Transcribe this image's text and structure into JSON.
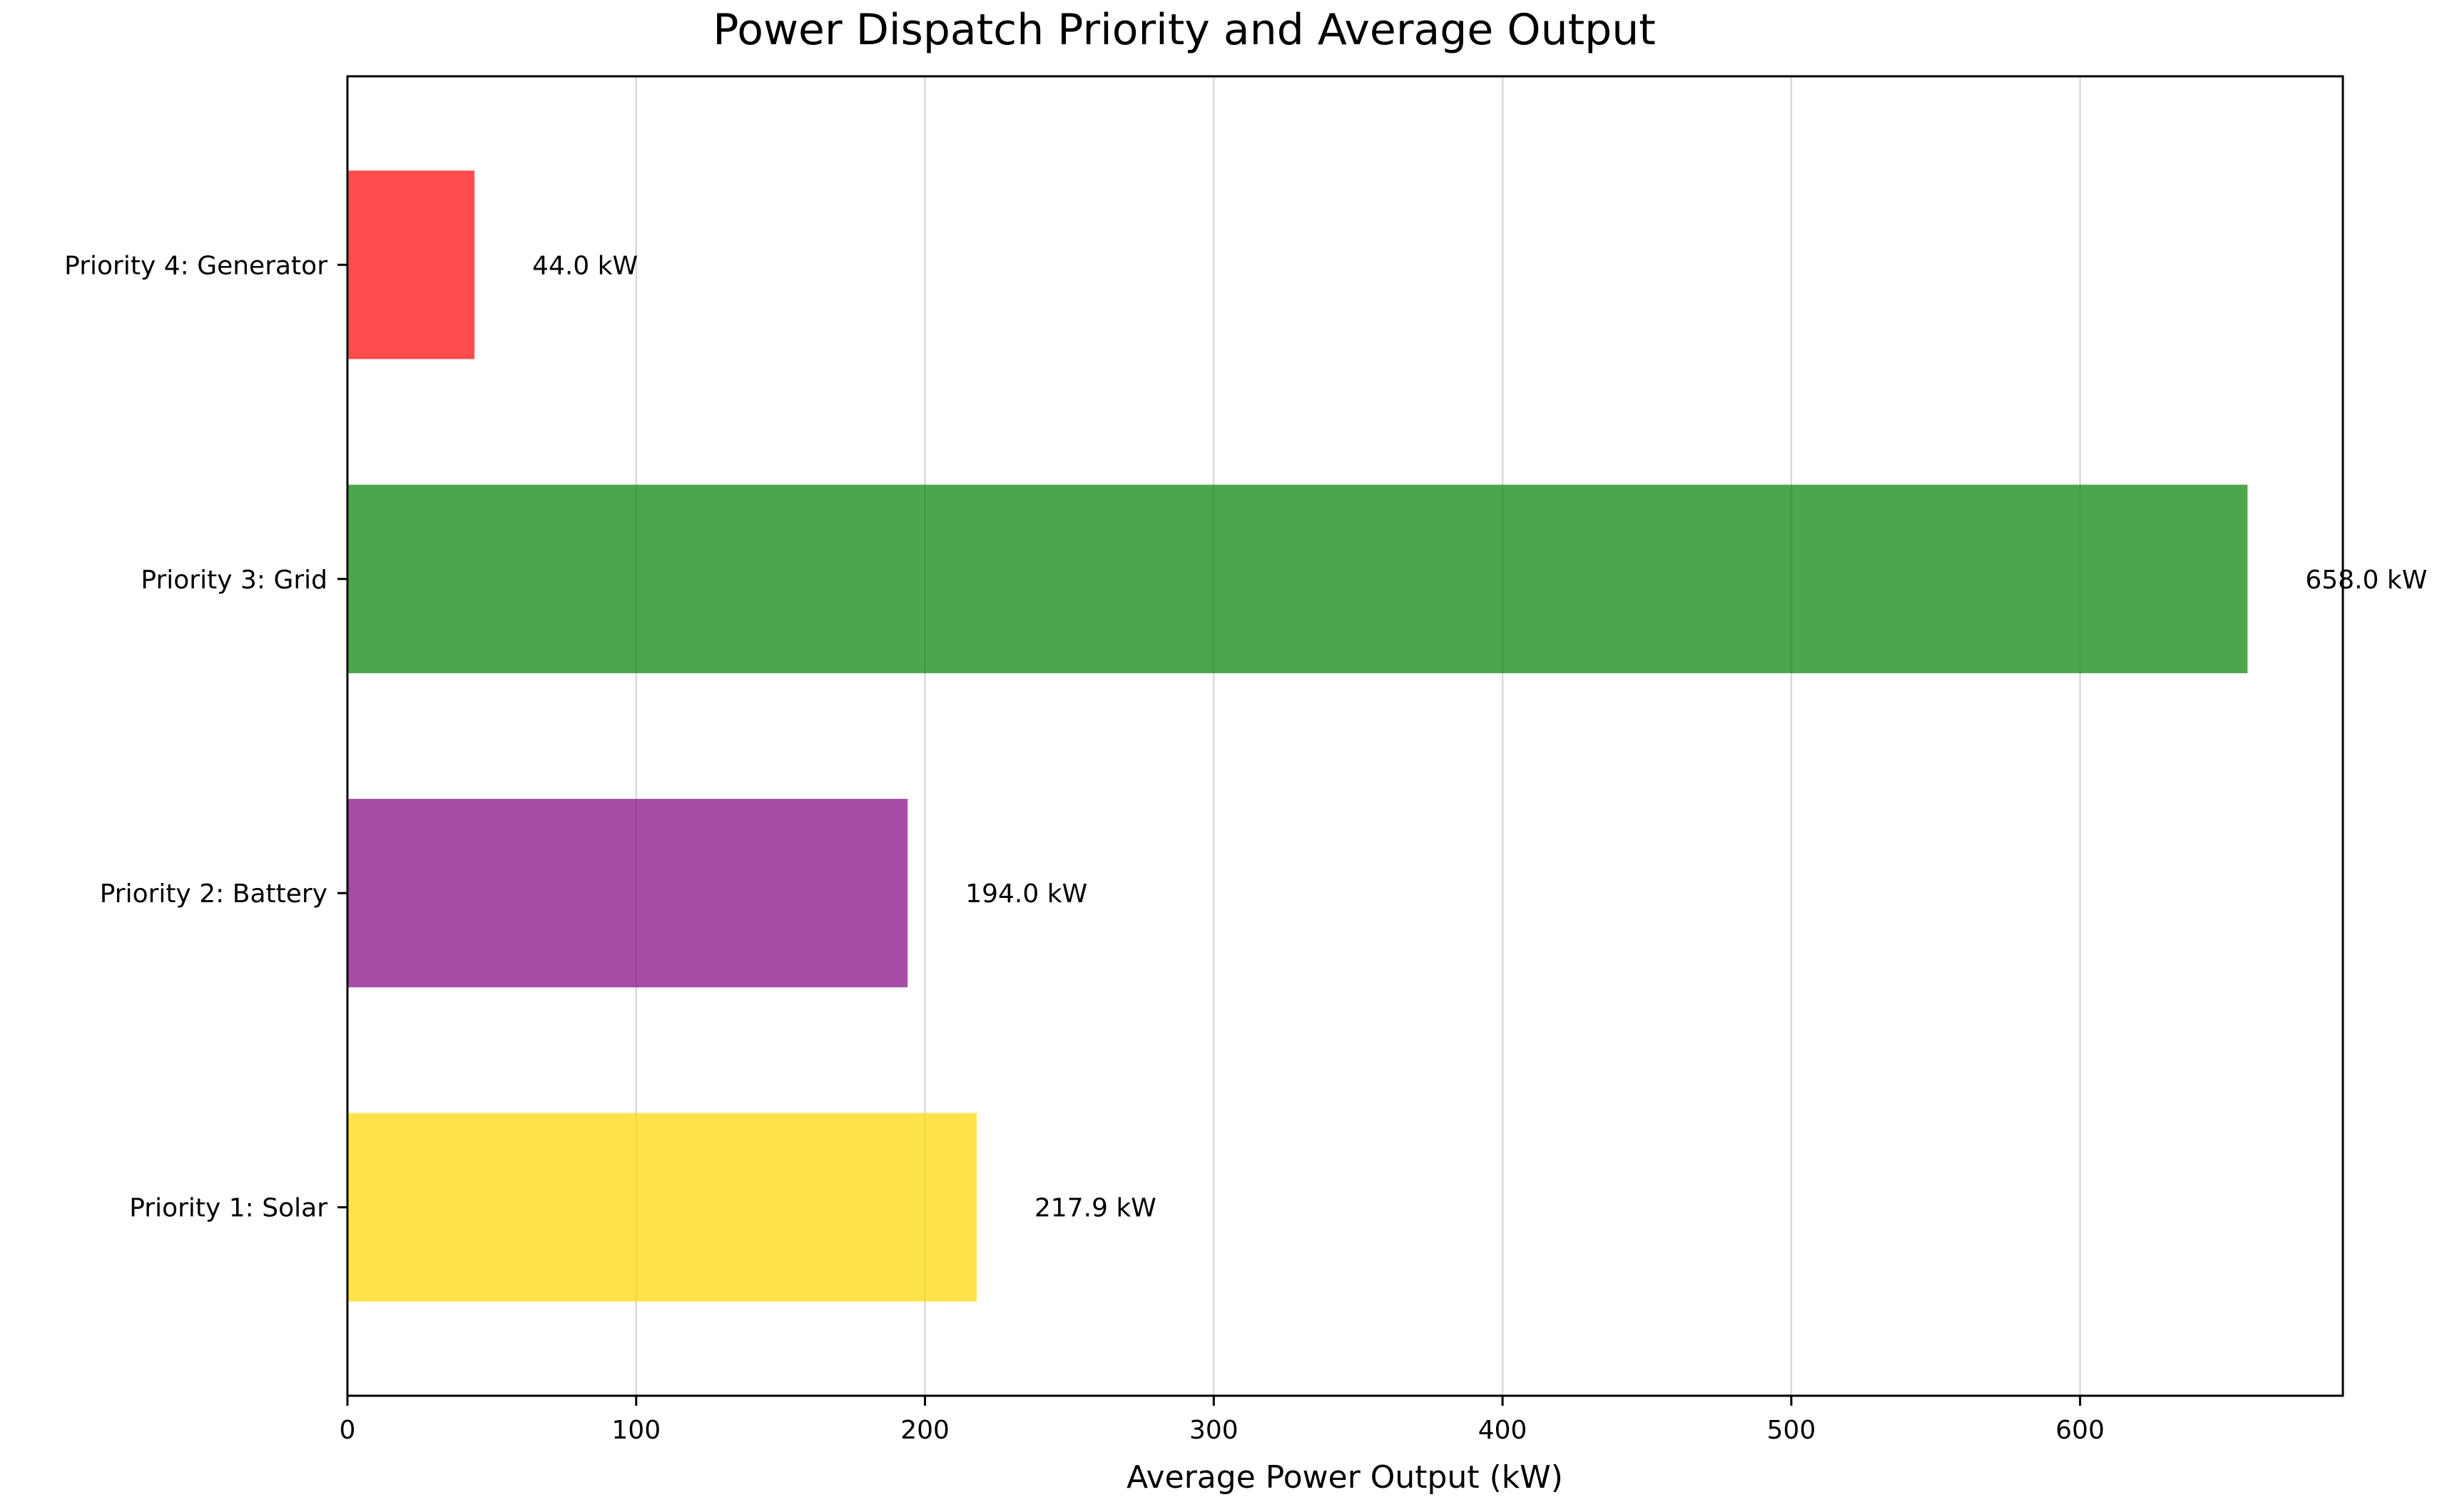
{
  "chart_data": {
    "type": "bar",
    "orientation": "horizontal",
    "title": "Power Dispatch Priority and Average Output",
    "xlabel": "Average Power Output (kW)",
    "ylabel": "",
    "xlim": [
      0,
      691
    ],
    "x_ticks": [
      0,
      100,
      200,
      300,
      400,
      500,
      600
    ],
    "grid": "vertical gridlines",
    "categories": [
      "Priority 1: Solar",
      "Priority 2: Battery",
      "Priority 3: Grid",
      "Priority 4: Generator"
    ],
    "values": [
      217.9,
      194.0,
      658.0,
      44.0
    ],
    "value_labels": [
      "217.9 kW",
      "194.0 kW",
      "658.0 kW",
      "44.0 kW"
    ],
    "colors": [
      "#FFD700",
      "#800080",
      "#008000",
      "#FF0000"
    ],
    "bar_alpha": 0.7
  }
}
